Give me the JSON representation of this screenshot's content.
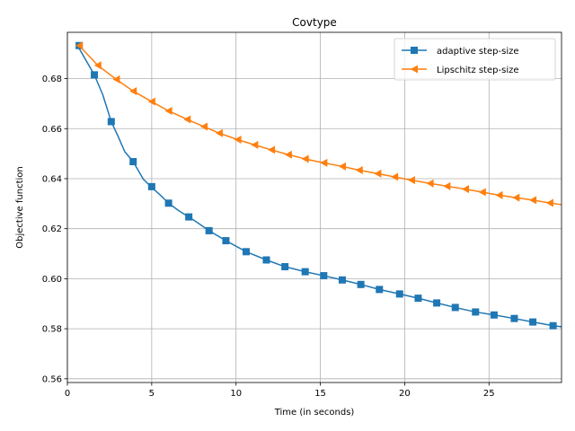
{
  "chart_data": {
    "type": "line",
    "title": "Covtype",
    "xlabel": "Time (in seconds)",
    "ylabel": "Objective function",
    "xlim": [
      0,
      29.3
    ],
    "ylim": [
      0.5585,
      0.6985
    ],
    "grid": true,
    "legend_position": "upper right",
    "x_ticks": [
      0,
      5,
      10,
      15,
      20,
      25
    ],
    "x_tick_labels": [
      "0",
      "5",
      "10",
      "15",
      "20",
      "25"
    ],
    "y_ticks": [
      0.56,
      0.58,
      0.6,
      0.62,
      0.64,
      0.66,
      0.68
    ],
    "y_tick_labels": [
      "0.56",
      "0.58",
      "0.60",
      "0.62",
      "0.64",
      "0.66",
      "0.68"
    ],
    "series": [
      {
        "name": "adaptive step-size",
        "color": "#1f77b4",
        "marker": "square",
        "line_x": [
          0.6,
          1.0,
          1.6,
          2.1,
          2.6,
          3.0,
          3.4,
          3.9,
          4.5,
          5.0,
          5.5,
          6.0,
          6.6,
          7.2,
          7.7,
          8.4,
          9.4,
          10.6,
          11.8,
          12.9,
          14.1,
          15.2,
          16.3,
          17.4,
          18.5,
          19.7,
          20.8,
          21.9,
          23.0,
          24.2,
          25.3,
          26.5,
          27.6,
          28.8,
          29.3
        ],
        "line_y": [
          0.6932,
          0.6885,
          0.6815,
          0.6735,
          0.6628,
          0.657,
          0.6508,
          0.6468,
          0.6398,
          0.6365,
          0.6335,
          0.6302,
          0.6272,
          0.6247,
          0.6225,
          0.6192,
          0.6152,
          0.6108,
          0.6075,
          0.6048,
          0.6028,
          0.6012,
          0.5995,
          0.5977,
          0.5957,
          0.5939,
          0.5922,
          0.5903,
          0.5885,
          0.5867,
          0.5855,
          0.5841,
          0.5827,
          0.5812,
          0.5808
        ],
        "marker_x": [
          0.7,
          1.6,
          2.6,
          3.9,
          5.0,
          6.0,
          7.2,
          8.4,
          9.4,
          10.6,
          11.8,
          12.9,
          14.1,
          15.2,
          16.3,
          17.4,
          18.5,
          19.7,
          20.8,
          21.9,
          23.0,
          24.2,
          25.3,
          26.5,
          27.6,
          28.8
        ],
        "marker_y": [
          0.6932,
          0.6815,
          0.6628,
          0.6468,
          0.6368,
          0.6302,
          0.6247,
          0.6192,
          0.6152,
          0.6108,
          0.6075,
          0.6048,
          0.6028,
          0.6012,
          0.5995,
          0.5977,
          0.5957,
          0.5939,
          0.5922,
          0.5903,
          0.5885,
          0.5867,
          0.5855,
          0.5841,
          0.5827,
          0.5812
        ]
      },
      {
        "name": "Lipschitz step-size",
        "color": "#ff7f0e",
        "marker": "triangle-left",
        "line_x": [
          0.7,
          1.8,
          2.9,
          3.9,
          5.0,
          6.0,
          7.1,
          8.1,
          9.0,
          10.1,
          11.1,
          12.1,
          13.1,
          14.1,
          15.2,
          16.3,
          17.3,
          18.4,
          19.4,
          20.4,
          21.5,
          22.5,
          23.6,
          24.6,
          25.6,
          26.6,
          27.6,
          28.6,
          29.3
        ],
        "line_y": [
          0.6932,
          0.6853,
          0.6797,
          0.675,
          0.6708,
          0.6671,
          0.6637,
          0.6608,
          0.6582,
          0.6556,
          0.6535,
          0.6515,
          0.6496,
          0.6479,
          0.6463,
          0.6449,
          0.6434,
          0.642,
          0.6407,
          0.6394,
          0.6381,
          0.637,
          0.6358,
          0.6346,
          0.6334,
          0.6324,
          0.6314,
          0.6303,
          0.6296
        ],
        "marker_x": [
          0.7,
          1.8,
          2.9,
          3.9,
          5.0,
          6.0,
          7.1,
          8.1,
          9.0,
          10.1,
          11.1,
          12.1,
          13.1,
          14.1,
          15.2,
          16.3,
          17.3,
          18.4,
          19.4,
          20.4,
          21.5,
          22.5,
          23.6,
          24.6,
          25.6,
          26.6,
          27.6,
          28.6
        ],
        "marker_y": [
          0.6932,
          0.6853,
          0.6797,
          0.675,
          0.6708,
          0.6671,
          0.6637,
          0.6608,
          0.6582,
          0.6556,
          0.6535,
          0.6515,
          0.6496,
          0.6479,
          0.6463,
          0.6449,
          0.6434,
          0.642,
          0.6407,
          0.6394,
          0.6381,
          0.637,
          0.6358,
          0.6346,
          0.6334,
          0.6324,
          0.6314,
          0.6303
        ]
      }
    ]
  }
}
